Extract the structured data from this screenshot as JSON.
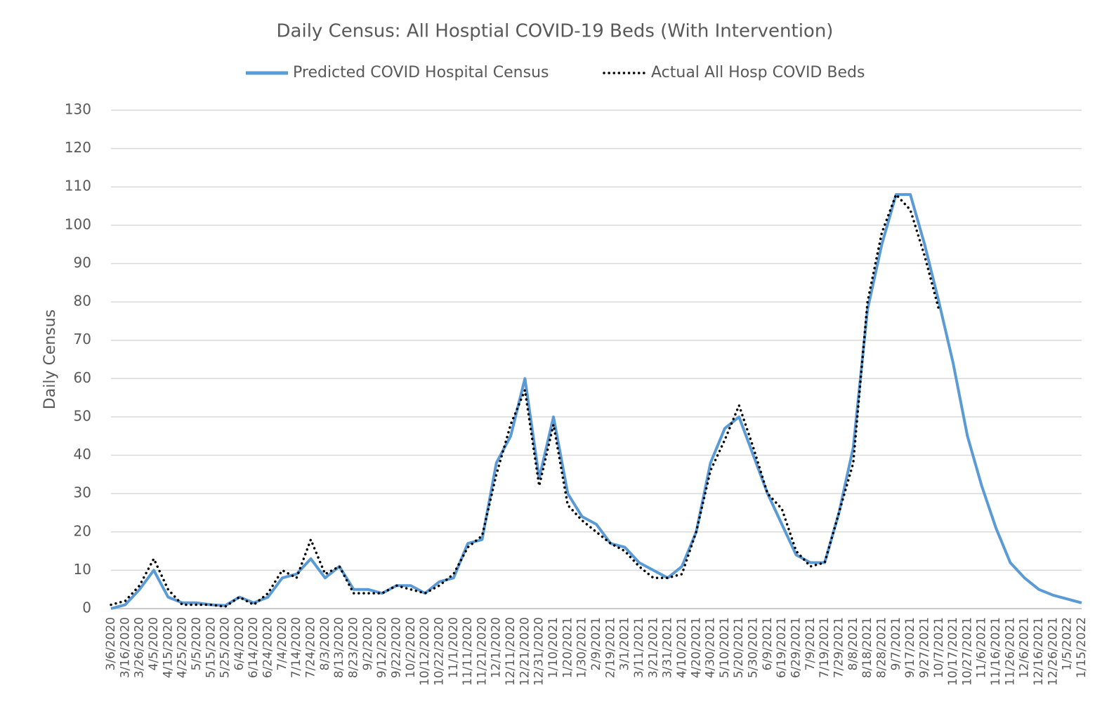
{
  "chart_data": {
    "type": "line",
    "title": "Daily Census: All Hosptial COVID-19 Beds (With Intervention)",
    "y_label": "Daily Census",
    "categories": [
      "3/6/2020",
      "3/16/2020",
      "3/26/2020",
      "4/5/2020",
      "4/15/2020",
      "4/25/2020",
      "5/5/2020",
      "5/15/2020",
      "5/25/2020",
      "6/4/2020",
      "6/14/2020",
      "6/24/2020",
      "7/4/2020",
      "7/14/2020",
      "7/24/2020",
      "8/3/2020",
      "8/13/2020",
      "8/23/2020",
      "9/2/2020",
      "9/12/2020",
      "9/22/2020",
      "10/2/2020",
      "10/12/2020",
      "10/22/2020",
      "11/1/2020",
      "11/11/2020",
      "11/21/2020",
      "12/1/2020",
      "12/11/2020",
      "12/21/2020",
      "12/31/2020",
      "1/10/2021",
      "1/20/2021",
      "1/30/2021",
      "2/9/2021",
      "2/19/2021",
      "3/1/2021",
      "3/11/2021",
      "3/21/2021",
      "3/31/2021",
      "4/10/2021",
      "4/20/2021",
      "4/30/2021",
      "5/10/2021",
      "5/20/2021",
      "5/30/2021",
      "6/9/2021",
      "6/19/2021",
      "6/29/2021",
      "7/9/2021",
      "7/19/2021",
      "7/29/2021",
      "8/8/2021",
      "8/18/2021",
      "8/28/2021",
      "9/7/2021",
      "9/17/2021",
      "9/27/2021",
      "10/7/2021",
      "10/17/2021",
      "10/27/2021",
      "11/6/2021",
      "11/16/2021",
      "11/26/2021",
      "12/6/2021",
      "12/16/2021",
      "12/26/2021",
      "1/5/2022",
      "1/15/2022"
    ],
    "series": [
      {
        "name": "Predicted COVID Hospital Census",
        "color": "#5b9bd5",
        "style": "solid",
        "values": [
          0,
          1,
          5,
          10,
          3,
          1.5,
          1.5,
          1,
          0.8,
          3,
          1.5,
          3,
          8,
          9,
          13,
          8,
          11,
          5,
          5,
          4,
          6,
          6,
          4,
          7,
          8,
          17,
          18,
          38,
          45,
          60,
          34,
          50,
          30,
          24,
          22,
          17,
          16,
          12,
          10,
          8,
          11,
          20,
          38,
          47,
          50,
          40,
          30,
          22,
          14,
          12,
          12,
          25,
          42,
          78,
          95,
          108,
          108,
          95,
          80,
          64,
          45,
          32,
          21,
          12,
          8,
          5,
          3.5,
          2.5,
          1.5
        ]
      },
      {
        "name": "Actual All Hosp COVID Beds",
        "color": "#000000",
        "style": "dotted",
        "values": [
          1,
          2,
          6,
          13,
          5,
          1,
          1,
          1,
          0.5,
          3,
          1,
          4,
          10,
          8,
          18,
          9,
          11,
          4,
          4,
          4,
          6,
          5,
          4,
          6,
          9,
          16,
          19,
          35,
          48,
          57,
          32,
          48,
          27,
          23,
          20,
          17,
          15,
          11,
          8,
          8,
          9,
          20,
          36,
          44,
          53,
          42,
          30,
          26,
          15,
          11,
          12,
          25,
          38,
          80,
          98,
          108,
          104,
          92,
          78,
          null,
          null,
          null,
          null,
          null,
          null,
          null,
          null,
          null,
          null
        ]
      }
    ],
    "ylim": [
      0,
      130
    ],
    "yticks": [
      0,
      10,
      20,
      30,
      40,
      50,
      60,
      70,
      80,
      90,
      100,
      110,
      120,
      130
    ],
    "grid": true,
    "legend": "top"
  }
}
